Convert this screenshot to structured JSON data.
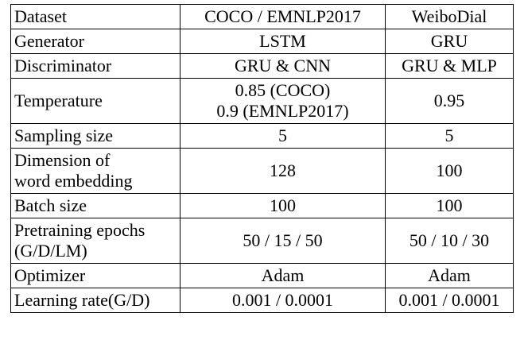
{
  "table": {
    "rows": [
      [
        [
          "Dataset"
        ],
        [
          "COCO / EMNLP2017"
        ],
        [
          "WeiboDial"
        ]
      ],
      [
        [
          "Generator"
        ],
        [
          "LSTM"
        ],
        [
          "GRU"
        ]
      ],
      [
        [
          "Discriminator"
        ],
        [
          "GRU & CNN"
        ],
        [
          "GRU & MLP"
        ]
      ],
      [
        [
          "Temperature"
        ],
        [
          "0.85 (COCO)",
          "0.9 (EMNLP2017)"
        ],
        [
          "0.95"
        ]
      ],
      [
        [
          "Sampling size"
        ],
        [
          "5"
        ],
        [
          "5"
        ]
      ],
      [
        [
          "Dimension of",
          "word embedding"
        ],
        [
          "128"
        ],
        [
          "100"
        ]
      ],
      [
        [
          "Batch size"
        ],
        [
          "100"
        ],
        [
          "100"
        ]
      ],
      [
        [
          "Pretraining epochs",
          "(G/D/LM)"
        ],
        [
          "50 / 15 / 50"
        ],
        [
          "50 / 10 / 30"
        ]
      ],
      [
        [
          "Optimizer"
        ],
        [
          "Adam"
        ],
        [
          "Adam"
        ]
      ],
      [
        [
          "Learning rate(G/D)"
        ],
        [
          "0.001 / 0.0001"
        ],
        [
          "0.001 / 0.0001"
        ]
      ]
    ]
  }
}
